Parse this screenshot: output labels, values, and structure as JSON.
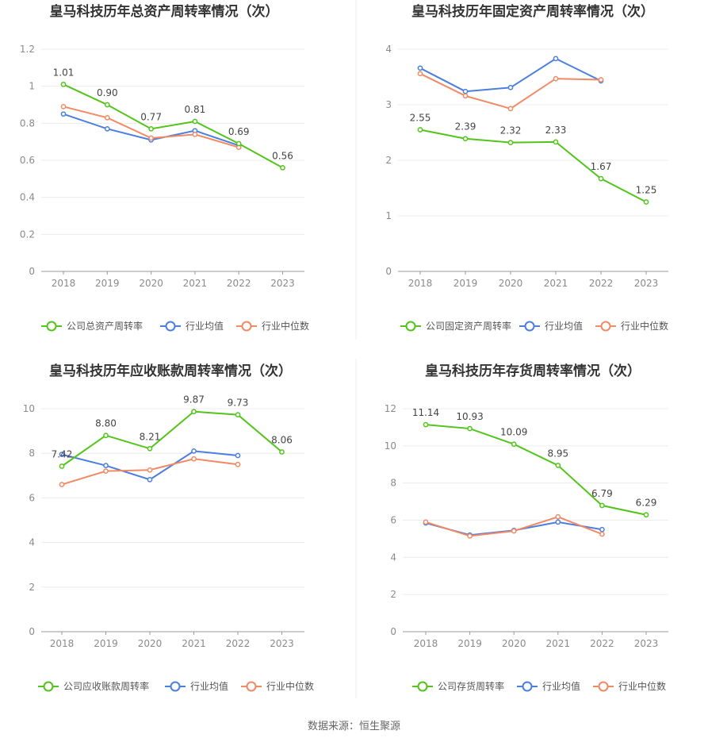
{
  "colors": {
    "company": "#52c41a",
    "avg": "#4a7fe0",
    "median": "#f08a64"
  },
  "source": "数据来源：恒生聚源",
  "chart_data": [
    {
      "type": "line",
      "title": "皇马科技历年总资产周转率情况（次）",
      "x": [
        "2018",
        "2019",
        "2020",
        "2021",
        "2022",
        "2023"
      ],
      "ylim": [
        0,
        1.2
      ],
      "yticks": [
        "0",
        "0.2",
        "0.4",
        "0.6",
        "0.8",
        "1",
        "1.2"
      ],
      "legend_position": "bottom",
      "series": [
        {
          "name": "公司总资产周转率",
          "key": "company",
          "values": [
            1.01,
            0.9,
            0.77,
            0.81,
            0.69,
            0.56
          ],
          "labels": [
            "1.01",
            "0.90",
            "0.77",
            "0.81",
            "0.69",
            "0.56"
          ]
        },
        {
          "name": "行业均值",
          "key": "avg",
          "values": [
            0.85,
            0.77,
            0.71,
            0.76,
            0.68,
            null
          ]
        },
        {
          "name": "行业中位数",
          "key": "median",
          "values": [
            0.89,
            0.83,
            0.72,
            0.74,
            0.67,
            null
          ]
        }
      ]
    },
    {
      "type": "line",
      "title": "皇马科技历年固定资产周转率情况（次）",
      "x": [
        "2018",
        "2019",
        "2020",
        "2021",
        "2022",
        "2023"
      ],
      "ylim": [
        0,
        4
      ],
      "yticks": [
        "0",
        "1",
        "2",
        "3",
        "4"
      ],
      "legend_position": "bottom",
      "series": [
        {
          "name": "公司固定资产周转率",
          "key": "company",
          "values": [
            2.55,
            2.39,
            2.32,
            2.33,
            1.67,
            1.25
          ],
          "labels": [
            "2.55",
            "2.39",
            "2.32",
            "2.33",
            "1.67",
            "1.25"
          ]
        },
        {
          "name": "行业均值",
          "key": "avg",
          "values": [
            3.66,
            3.24,
            3.31,
            3.83,
            3.43,
            null
          ]
        },
        {
          "name": "行业中位数",
          "key": "median",
          "values": [
            3.56,
            3.16,
            2.93,
            3.47,
            3.45,
            null
          ]
        }
      ]
    },
    {
      "type": "line",
      "title": "皇马科技历年应收账款周转率情况（次）",
      "x": [
        "2018",
        "2019",
        "2020",
        "2021",
        "2022",
        "2023"
      ],
      "ylim": [
        0,
        10
      ],
      "yticks": [
        "0",
        "2",
        "4",
        "6",
        "8",
        "10"
      ],
      "legend_position": "bottom",
      "series": [
        {
          "name": "公司应收账款周转率",
          "key": "company",
          "values": [
            7.42,
            8.8,
            8.21,
            9.87,
            9.73,
            8.06
          ],
          "labels": [
            "7.42",
            "8.80",
            "8.21",
            "9.87",
            "9.73",
            "8.06"
          ]
        },
        {
          "name": "行业均值",
          "key": "avg",
          "values": [
            7.95,
            7.45,
            6.82,
            8.1,
            7.9,
            null
          ]
        },
        {
          "name": "行业中位数",
          "key": "median",
          "values": [
            6.6,
            7.2,
            7.25,
            7.75,
            7.5,
            null
          ]
        }
      ]
    },
    {
      "type": "line",
      "title": "皇马科技历年存货周转率情况（次）",
      "x": [
        "2018",
        "2019",
        "2020",
        "2021",
        "2022",
        "2023"
      ],
      "ylim": [
        0,
        12
      ],
      "yticks": [
        "0",
        "2",
        "4",
        "6",
        "8",
        "10",
        "12"
      ],
      "legend_position": "bottom",
      "series": [
        {
          "name": "公司存货周转率",
          "key": "company",
          "values": [
            11.14,
            10.93,
            10.09,
            8.95,
            6.79,
            6.29
          ],
          "labels": [
            "11.14",
            "10.93",
            "10.09",
            "8.95",
            "6.79",
            "6.29"
          ]
        },
        {
          "name": "行业均值",
          "key": "avg",
          "values": [
            5.85,
            5.2,
            5.45,
            5.9,
            5.5,
            null
          ]
        },
        {
          "name": "行业中位数",
          "key": "median",
          "values": [
            5.9,
            5.15,
            5.42,
            6.18,
            5.25,
            null
          ]
        }
      ]
    }
  ]
}
